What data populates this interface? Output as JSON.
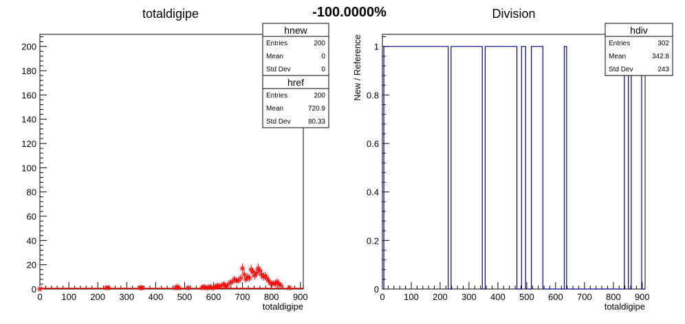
{
  "page": {
    "title": "-100.0000%"
  },
  "chart_data": [
    {
      "type": "scatter",
      "title": "totaldigipe",
      "xlabel": "totaldigipe",
      "ylabel": "",
      "xlim": [
        0,
        910
      ],
      "ylim": [
        0,
        210
      ],
      "x_ticks": [
        0,
        100,
        200,
        300,
        400,
        500,
        600,
        700,
        800,
        900
      ],
      "y_ticks": [
        0,
        20,
        40,
        60,
        80,
        100,
        120,
        140,
        160,
        180,
        200
      ],
      "series": [
        {
          "name": "hnew",
          "color": "#ff0000",
          "style": "line",
          "x": [
            0,
            910
          ],
          "values": [
            0,
            0
          ]
        },
        {
          "name": "href",
          "color": "#ff0000",
          "style": "markers",
          "x": [
            0,
            230,
            236,
            348,
            352,
            470,
            474,
            480,
            512,
            560,
            566,
            574,
            580,
            588,
            594,
            600,
            608,
            614,
            620,
            628,
            636,
            642,
            648,
            656,
            664,
            672,
            678,
            686,
            694,
            700,
            706,
            712,
            718,
            724,
            730,
            736,
            742,
            748,
            754,
            760,
            766,
            772,
            778,
            784,
            790,
            796,
            802,
            808,
            814,
            820,
            826,
            832,
            862
          ],
          "values": [
            0,
            1,
            1,
            1,
            1,
            1,
            2,
            1,
            1,
            1,
            2,
            1,
            1,
            2,
            1,
            1,
            2,
            3,
            2,
            3,
            4,
            2,
            3,
            5,
            6,
            8,
            7,
            7,
            9,
            17,
            12,
            8,
            10,
            9,
            16,
            14,
            11,
            13,
            17,
            15,
            12,
            10,
            11,
            9,
            7,
            5,
            4,
            5,
            4,
            6,
            4,
            3,
            1
          ]
        }
      ],
      "stats_boxes": [
        {
          "name": "hnew",
          "rows": [
            {
              "label": "Entries",
              "value": "200"
            },
            {
              "label": "Mean",
              "value": "0"
            },
            {
              "label": "Std Dev",
              "value": "0"
            }
          ]
        },
        {
          "name": "href",
          "rows": [
            {
              "label": "Entries",
              "value": "200"
            },
            {
              "label": "Mean",
              "value": "720.9"
            },
            {
              "label": "Std Dev",
              "value": "80.33"
            }
          ]
        }
      ]
    },
    {
      "type": "line",
      "title": "Division",
      "xlabel": "totaldigipe",
      "ylabel": "New / Reference",
      "xlim": [
        0,
        910
      ],
      "ylim": [
        0,
        1.05
      ],
      "x_ticks": [
        0,
        100,
        200,
        300,
        400,
        500,
        600,
        700,
        800,
        900
      ],
      "y_ticks": [
        0,
        0.2,
        0.4,
        0.6,
        0.8,
        1
      ],
      "series": [
        {
          "name": "hdiv",
          "color": "#000080",
          "style": "step",
          "intervals": [
            [
              5,
              228
            ],
            [
              238,
              346
            ],
            [
              356,
              466
            ],
            [
              482,
              496
            ],
            [
              516,
              556
            ],
            [
              630,
              638
            ],
            [
              838,
              852
            ],
            [
              862,
              898
            ]
          ]
        }
      ],
      "stats_boxes": [
        {
          "name": "hdiv",
          "rows": [
            {
              "label": "Entries",
              "value": "302"
            },
            {
              "label": "Mean",
              "value": "342.8"
            },
            {
              "label": "Std Dev",
              "value": "243"
            }
          ]
        }
      ]
    }
  ]
}
